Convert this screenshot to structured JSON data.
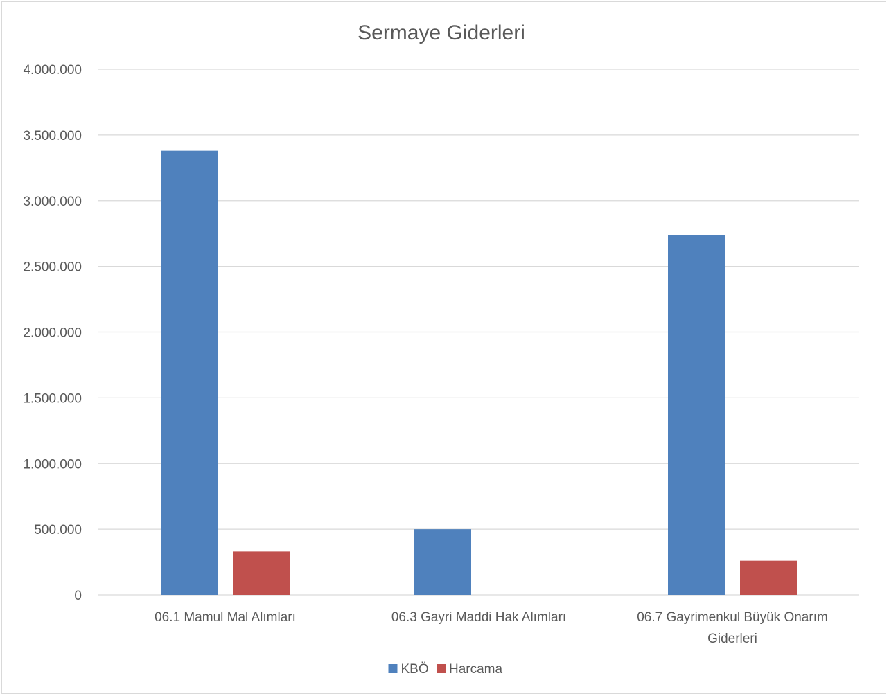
{
  "chart_data": {
    "type": "bar",
    "title": "Sermaye Giderleri",
    "categories": [
      [
        "06.1 Mamul Mal Alımları"
      ],
      [
        "06.3 Gayri Maddi Hak Alımları"
      ],
      [
        "06.7 Gayrimenkul Büyük Onarım",
        "Giderleri"
      ]
    ],
    "series": [
      {
        "name": "KBÖ",
        "color": "#4f81bd",
        "values": [
          3380000,
          500000,
          2740000
        ]
      },
      {
        "name": "Harcama",
        "color": "#c0504d",
        "values": [
          330000,
          0,
          260000
        ]
      }
    ],
    "ylim": [
      0,
      4000000
    ],
    "yticks": [
      0,
      500000,
      1000000,
      1500000,
      2000000,
      2500000,
      3000000,
      3500000,
      4000000
    ],
    "ytick_labels": [
      "0",
      "500.000",
      "1.000.000",
      "1.500.000",
      "2.000.000",
      "2.500.000",
      "3.000.000",
      "3.500.000",
      "4.000.000"
    ],
    "grid": true,
    "legend": "bottom"
  }
}
